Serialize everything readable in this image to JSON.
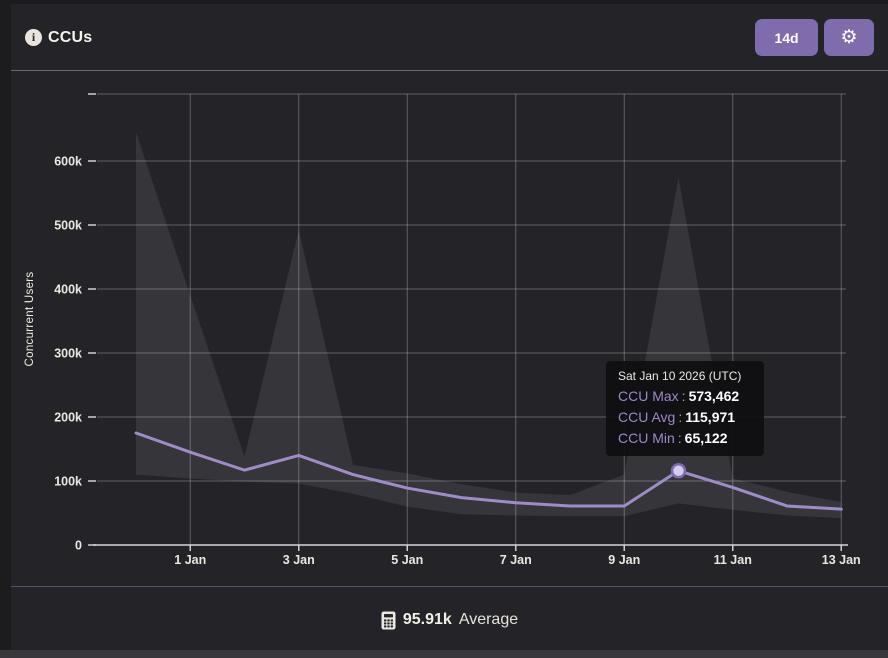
{
  "header": {
    "info_glyph": "i",
    "title": "CCUs",
    "range_button_label": "14d",
    "gear_glyph": "⚙"
  },
  "chart_data": {
    "type": "area",
    "title": "CCUs",
    "ylabel": "Concurrent Users",
    "xlabel": "",
    "grid": true,
    "legend": "none",
    "ylim": [
      0,
      700000
    ],
    "n_days": 14,
    "y_tick_labels": [
      "0",
      "100k",
      "200k",
      "300k",
      "400k",
      "500k",
      "600k"
    ],
    "x_tick_labels": [
      "1 Jan",
      "3 Jan",
      "5 Jan",
      "7 Jan",
      "9 Jan",
      "11 Jan",
      "13 Jan"
    ],
    "x_tick_day_index": [
      1,
      3,
      5,
      7,
      9,
      11,
      13
    ],
    "highlight_index": 10,
    "highlight_date": "Sat Jan 10 2026 (UTC)",
    "series": [
      {
        "name": "CCU Max",
        "values": [
          645000,
          390000,
          138000,
          492000,
          125000,
          112000,
          95000,
          82000,
          78000,
          110000,
          573462,
          104000,
          83000,
          67000
        ]
      },
      {
        "name": "CCU Avg",
        "values": [
          175000,
          145000,
          117000,
          140000,
          110000,
          89000,
          74000,
          66000,
          61000,
          61000,
          115971,
          90000,
          61000,
          56000
        ]
      },
      {
        "name": "CCU Min",
        "values": [
          110000,
          104000,
          99000,
          96000,
          80000,
          60000,
          48000,
          46000,
          45000,
          45000,
          65122,
          55000,
          46000,
          42000
        ]
      }
    ]
  },
  "tooltip": {
    "date": "Sat Jan 10 2026 (UTC)",
    "separator": ":",
    "rows": [
      {
        "label": "CCU Max",
        "value": "573,462"
      },
      {
        "label": "CCU Avg",
        "value": "115,971"
      },
      {
        "label": "CCU Min",
        "value": "65,122"
      }
    ]
  },
  "footer": {
    "average_value": "95.91k",
    "average_label": "Average"
  },
  "colors": {
    "accent_button": "#7E6CAD",
    "avg_line": "#9E8CC9",
    "marker_fill": "#D5CAF0",
    "marker_stroke": "#7C69AE",
    "tooltip_label": "#9B88C8",
    "band_fill": "rgba(255,255,255,0.085)",
    "card_bg": "#242428",
    "page_bg": "#1C1C1F",
    "header_divider": "#6E6678",
    "footer_divider": "#584D70",
    "text": "#ECE8E0"
  }
}
